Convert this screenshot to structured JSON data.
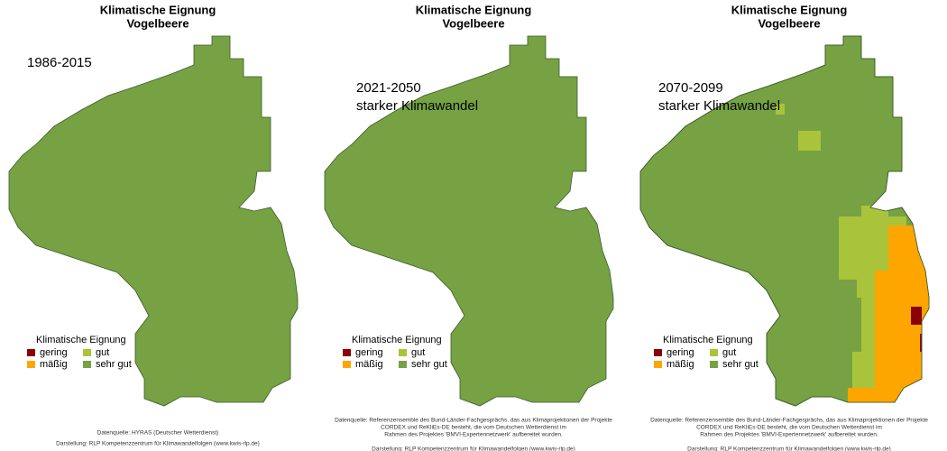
{
  "panels": [
    {
      "title": [
        "Klimatische Eignung",
        "Vogelbeere"
      ],
      "period": [
        "1986-2015"
      ],
      "legend": {
        "title": "Klimatische Eignung",
        "items": [
          {
            "name": "gering",
            "color": "#8b0000"
          },
          {
            "name": "gut",
            "color": "#a9c43b"
          },
          {
            "name": "mäßig",
            "color": "#ffa500"
          },
          {
            "name": "sehr gut",
            "color": "#76a244"
          }
        ]
      },
      "source": [
        "Datenquelle: HYRAS (Deutscher Wetterdienst)",
        "Darstellung: RLP Kompetenzzentrum für Klimawandelfolgen (www.kwis-rlp.de)"
      ]
    },
    {
      "title": [
        "Klimatische Eignung",
        "Vogelbeere"
      ],
      "period": [
        "2021-2050",
        "starker Klimawandel"
      ],
      "legend": {
        "title": "Klimatische Eignung",
        "items": [
          {
            "name": "gering",
            "color": "#8b0000"
          },
          {
            "name": "gut",
            "color": "#a9c43b"
          },
          {
            "name": "mäßig",
            "color": "#ffa500"
          },
          {
            "name": "sehr gut",
            "color": "#76a244"
          }
        ]
      },
      "source": [
        "Datenquelle: Referenzensemble des Bund-Länder-Fachgesprächs, das aus Klimaprojektionen der Projekte",
        "CORDEX und ReKliEs-DE besteht, die vom Deutschen Wetterdienst im",
        "Rahmen des Projektes 'BMVI-Expertennetzwerk' aufbereitet wurden.",
        "Darstellung: RLP Kompetenzzentrum für Klimawandelfolgen (www.kwis-rlp.de)"
      ]
    },
    {
      "title": [
        "Klimatische Eignung",
        "Vogelbeere"
      ],
      "period": [
        "2070-2099",
        "starker Klimawandel"
      ],
      "legend": {
        "title": "Klimatische Eignung",
        "items": [
          {
            "name": "gering",
            "color": "#8b0000"
          },
          {
            "name": "gut",
            "color": "#a9c43b"
          },
          {
            "name": "mäßig",
            "color": "#ffa500"
          },
          {
            "name": "sehr gut",
            "color": "#76a244"
          }
        ]
      },
      "source": [
        "Datenquelle: Referenzensemble des Bund-Länder-Fachgesprächs, das aus Klimaprojektionen der Projekte",
        "CORDEX und ReKliEs-DE besteht, die vom Deutschen Wetterdienst im",
        "Rahmen des Projektes 'BMVI-Expertennetzwerk' aufbereitet wurden.",
        "Darstellung: RLP Kompetenzzentrum für Klimawandelfolgen (www.kwis-rlp.de)"
      ]
    }
  ]
}
